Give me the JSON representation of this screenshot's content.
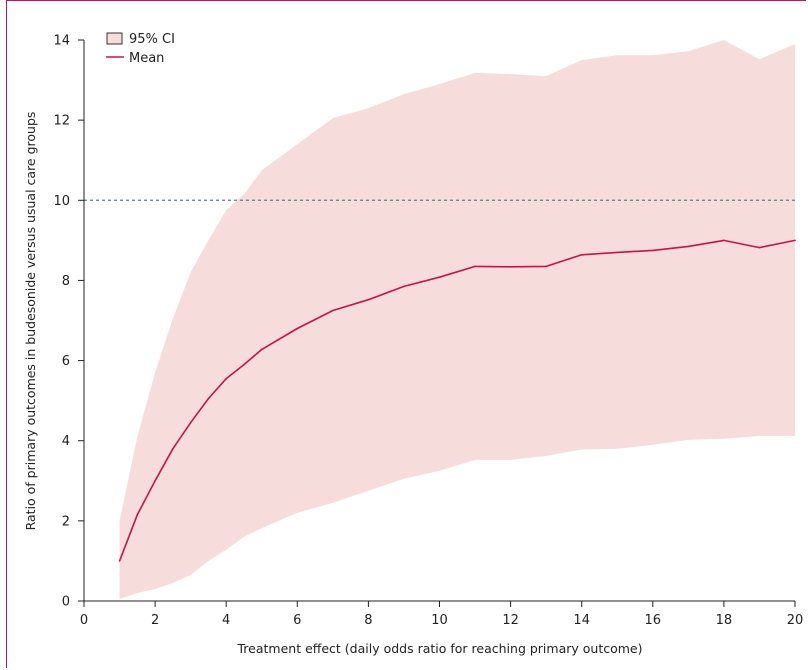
{
  "chart_data": {
    "type": "line",
    "xlabel": "Treatment effect (daily odds ratio for reaching primary outcome)",
    "ylabel": "Ratio of primary outcomes in budesonide versus usual care groups",
    "xlim": [
      0,
      20
    ],
    "ylim": [
      0,
      14
    ],
    "x_ticks": [
      "0",
      "2",
      "4",
      "6",
      "8",
      "10",
      "12",
      "14",
      "16",
      "18",
      "20"
    ],
    "y_ticks": [
      "0",
      "2",
      "4",
      "6",
      "8",
      "10",
      "12",
      "14"
    ],
    "reference_line": {
      "y": 10,
      "style": "dashed"
    },
    "legend": {
      "position": "top-left",
      "ci_label": "95% CI",
      "mean_label": "Mean"
    },
    "colors": {
      "mean": "#c4154a",
      "ci_fill": "#f6dcda",
      "reference": "#5a7f8c",
      "frame": "#c4154a"
    },
    "x": [
      1,
      1.5,
      2,
      2.5,
      3,
      3.5,
      4,
      4.5,
      5,
      6,
      7,
      8,
      9,
      10,
      11,
      12,
      13,
      14,
      15,
      16,
      17,
      18,
      19,
      20
    ],
    "mean": [
      1.0,
      2.15,
      3.0,
      3.8,
      4.45,
      5.05,
      5.55,
      5.9,
      6.28,
      6.8,
      7.25,
      7.52,
      7.85,
      8.08,
      8.35,
      8.34,
      8.35,
      8.64,
      8.7,
      8.75,
      8.85,
      9.0,
      8.82,
      9.0
    ],
    "ci_upper": [
      2.0,
      4.1,
      5.7,
      7.05,
      8.2,
      9.0,
      9.75,
      10.15,
      10.75,
      11.4,
      12.05,
      12.3,
      12.65,
      12.9,
      13.18,
      13.15,
      13.1,
      13.5,
      13.62,
      13.62,
      13.72,
      14.0,
      13.52,
      13.9
    ],
    "ci_lower": [
      0.05,
      0.2,
      0.3,
      0.45,
      0.65,
      1.0,
      1.28,
      1.6,
      1.82,
      2.2,
      2.45,
      2.75,
      3.05,
      3.25,
      3.52,
      3.52,
      3.62,
      3.78,
      3.8,
      3.9,
      4.02,
      4.05,
      4.12,
      4.12
    ]
  }
}
